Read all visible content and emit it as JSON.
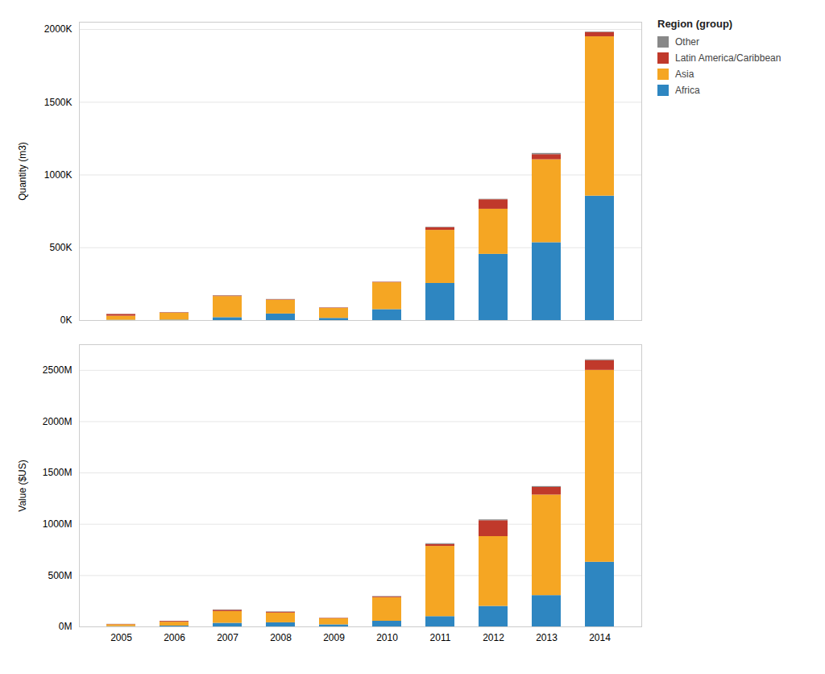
{
  "chart_data": [
    {
      "type": "bar",
      "stacked": true,
      "grid": true,
      "legend": "right",
      "tick_labels": "y",
      "legend_title": "Region (group)",
      "ylabel": "Quantity (m3)",
      "categories": [
        "2005",
        "2006",
        "2007",
        "2008",
        "2009",
        "2010",
        "2011",
        "2012",
        "2013",
        "2014"
      ],
      "series": [
        {
          "name": "Africa",
          "color": "#2E86C1",
          "values": [
            2000,
            3000,
            20000,
            45000,
            15000,
            75000,
            255000,
            455000,
            535000,
            855000
          ]
        },
        {
          "name": "Asia",
          "color": "#F5A623",
          "values": [
            28000,
            48000,
            145000,
            95000,
            68000,
            185000,
            365000,
            310000,
            570000,
            1095000
          ]
        },
        {
          "name": "Latin America/Caribbean",
          "color": "#C0392B",
          "values": [
            12000,
            3000,
            4000,
            3000,
            3000,
            3000,
            18000,
            65000,
            35000,
            30000
          ]
        },
        {
          "name": "Other",
          "color": "#888888",
          "values": [
            1000,
            1000,
            2000,
            2000,
            1000,
            1000,
            3000,
            3000,
            8000,
            3000
          ]
        }
      ],
      "ylim": [
        0,
        2050000
      ],
      "yticks": [
        {
          "value": 0,
          "label": "0K"
        },
        {
          "value": 500000,
          "label": "500K"
        },
        {
          "value": 1000000,
          "label": "1000K"
        },
        {
          "value": 1500000,
          "label": "1500K"
        },
        {
          "value": 2000000,
          "label": "2000K"
        }
      ]
    },
    {
      "type": "bar",
      "stacked": true,
      "grid": true,
      "ylabel": "Value ($US)",
      "categories": [
        "2005",
        "2006",
        "2007",
        "2008",
        "2009",
        "2010",
        "2011",
        "2012",
        "2013",
        "2014"
      ],
      "series": [
        {
          "name": "Africa",
          "color": "#2E86C1",
          "values": [
            3000000,
            8000000,
            35000000,
            40000000,
            20000000,
            55000000,
            100000000,
            200000000,
            305000000,
            630000000
          ]
        },
        {
          "name": "Asia",
          "color": "#F5A623",
          "values": [
            18000000,
            38000000,
            115000000,
            95000000,
            60000000,
            230000000,
            685000000,
            680000000,
            980000000,
            1870000000
          ]
        },
        {
          "name": "Latin America/Caribbean",
          "color": "#C0392B",
          "values": [
            3000000,
            8000000,
            12000000,
            8000000,
            4000000,
            8000000,
            18000000,
            155000000,
            75000000,
            95000000
          ]
        },
        {
          "name": "Other",
          "color": "#888888",
          "values": [
            1000000,
            1000000,
            4000000,
            4000000,
            1000000,
            4000000,
            8000000,
            8000000,
            8000000,
            8000000
          ]
        }
      ],
      "ylim": [
        0,
        2750000000
      ],
      "yticks": [
        {
          "value": 0,
          "label": "0M"
        },
        {
          "value": 500000000,
          "label": "500M"
        },
        {
          "value": 1000000000,
          "label": "1000M"
        },
        {
          "value": 1500000000,
          "label": "1500M"
        },
        {
          "value": 2000000000,
          "label": "2000M"
        },
        {
          "value": 2500000000,
          "label": "2500M"
        }
      ]
    }
  ]
}
